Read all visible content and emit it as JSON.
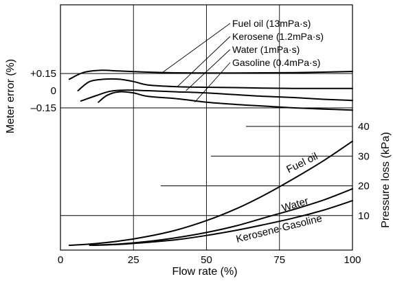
{
  "chart_data": {
    "type": "line",
    "xlabel": "Flow rate (%)",
    "ylabel_left": "Meter error (%)",
    "ylabel_right": "Pressure loss (kPa)",
    "xlim": [
      0,
      100
    ],
    "x_ticks": [
      "0",
      "25",
      "50",
      "75",
      "100"
    ],
    "error_ticks": [
      "+0.15",
      "0",
      "–0.15"
    ],
    "error_tick_values": [
      0.15,
      0,
      -0.15
    ],
    "pressure_ticks": [
      "40",
      "30",
      "20",
      "10"
    ],
    "pressure_tick_values": [
      40,
      30,
      20,
      10
    ],
    "grid": true,
    "meter_error": [
      {
        "name": "Fuel oil (13mPa·s)",
        "x": [
          3,
          8,
          14,
          20,
          30,
          40,
          50,
          60,
          70,
          80,
          90,
          100
        ],
        "y": [
          0.1,
          0.16,
          0.178,
          0.172,
          0.162,
          0.156,
          0.155,
          0.155,
          0.156,
          0.158,
          0.162,
          0.168
        ]
      },
      {
        "name": "Kerosene (1.2mPa·s)",
        "x": [
          6,
          10,
          15,
          20,
          25,
          30,
          40,
          50,
          60,
          70,
          80,
          90,
          100
        ],
        "y": [
          0.0,
          0.08,
          0.1,
          0.1,
          0.08,
          0.05,
          0.035,
          0.03,
          0.027,
          0.022,
          0.02,
          0.02,
          0.02
        ]
      },
      {
        "name": "Water (1mPa·s)",
        "x": [
          7,
          12,
          17,
          22,
          30,
          40,
          50,
          60,
          70,
          80,
          90,
          100
        ],
        "y": [
          -0.09,
          -0.045,
          -0.005,
          0.005,
          0.0,
          -0.01,
          -0.02,
          -0.035,
          -0.05,
          -0.06,
          -0.075,
          -0.085
        ]
      },
      {
        "name": "Gasoline (0.4mPa·s)",
        "x": [
          13,
          16,
          20,
          25,
          30,
          40,
          50,
          60,
          70,
          80,
          90,
          100
        ],
        "y": [
          -0.1,
          -0.04,
          -0.01,
          -0.02,
          -0.05,
          -0.07,
          -0.1,
          -0.12,
          -0.135,
          -0.15,
          -0.16,
          -0.17
        ]
      }
    ],
    "pressure_loss": [
      {
        "name": "Fuel oil",
        "x": [
          3,
          10,
          20,
          30,
          40,
          50,
          60,
          70,
          80,
          90,
          100
        ],
        "y": [
          0,
          0.4,
          1.4,
          3,
          5.2,
          8.3,
          12.2,
          17,
          22.5,
          28.4,
          35
        ]
      },
      {
        "name": "Water",
        "x": [
          10,
          20,
          30,
          40,
          50,
          60,
          70,
          80,
          90,
          100
        ],
        "y": [
          0,
          0.4,
          1.3,
          2.6,
          4.3,
          6.5,
          9.3,
          12.1,
          15.2,
          19
        ]
      },
      {
        "name": "Kerosene·Gasoline",
        "x": [
          11,
          20,
          30,
          40,
          50,
          60,
          70,
          80,
          90,
          100
        ],
        "y": [
          0,
          0.3,
          1,
          1.9,
          3.3,
          5,
          7,
          9.2,
          11.8,
          15
        ]
      }
    ],
    "legend": [
      "Fuel oil (13mPa·s)",
      "Kerosene (1.2mPa·s)",
      "Water (1mPa·s)",
      "Gasoline (0.4mPa·s)"
    ],
    "curve_labels": [
      "Fuel oil",
      "Water",
      "Kerosene·Gasoline"
    ]
  }
}
